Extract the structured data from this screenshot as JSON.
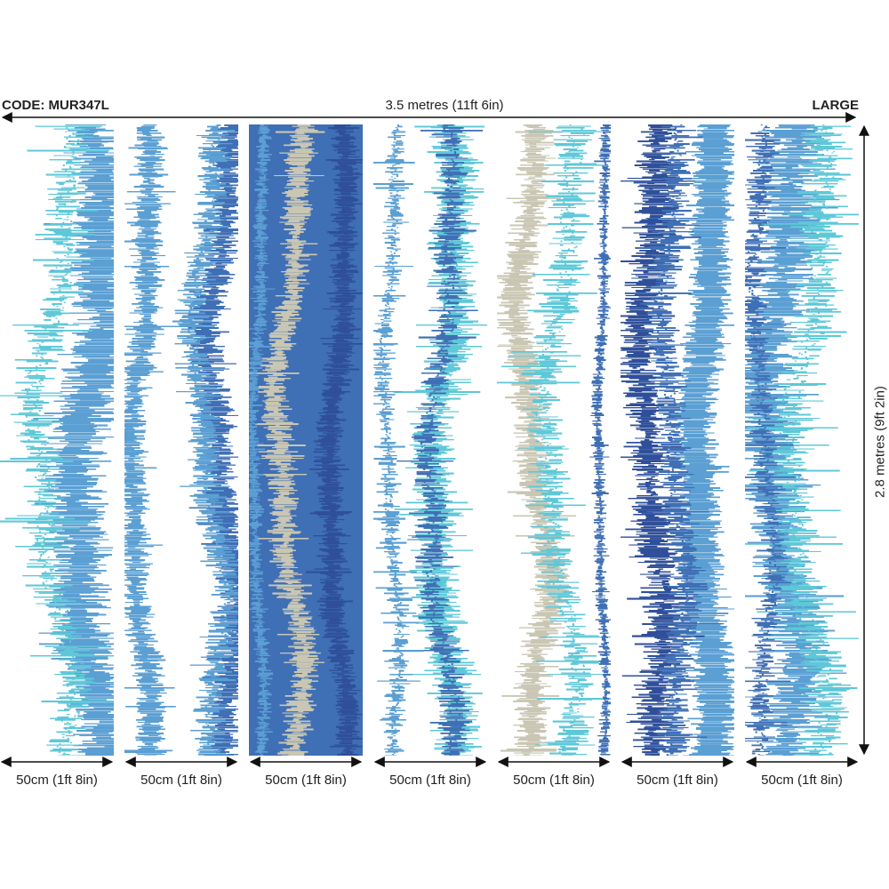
{
  "header": {
    "code": "CODE: MUR347L",
    "total_width": "3.5 metres (11ft 6in)",
    "size": "LARGE"
  },
  "height_label": "2.8 metres (9ft 2in)",
  "panel_width_label": "50cm (1ft 8in)",
  "panels": [
    {
      "label": "50cm (1ft 8in)"
    },
    {
      "label": "50cm (1ft 8in)"
    },
    {
      "label": "50cm (1ft 8in)"
    },
    {
      "label": "50cm (1ft 8in)"
    },
    {
      "label": "50cm (1ft 8in)"
    },
    {
      "label": "50cm (1ft 8in)"
    },
    {
      "label": "50cm (1ft 8in)"
    }
  ],
  "colors": {
    "sky_blue": "#5b9fd3",
    "royal_blue": "#3f6fb5",
    "navy": "#2f4f9a",
    "aqua": "#5ec8d8",
    "sand": "#c9c6b3",
    "white": "#ffffff"
  }
}
